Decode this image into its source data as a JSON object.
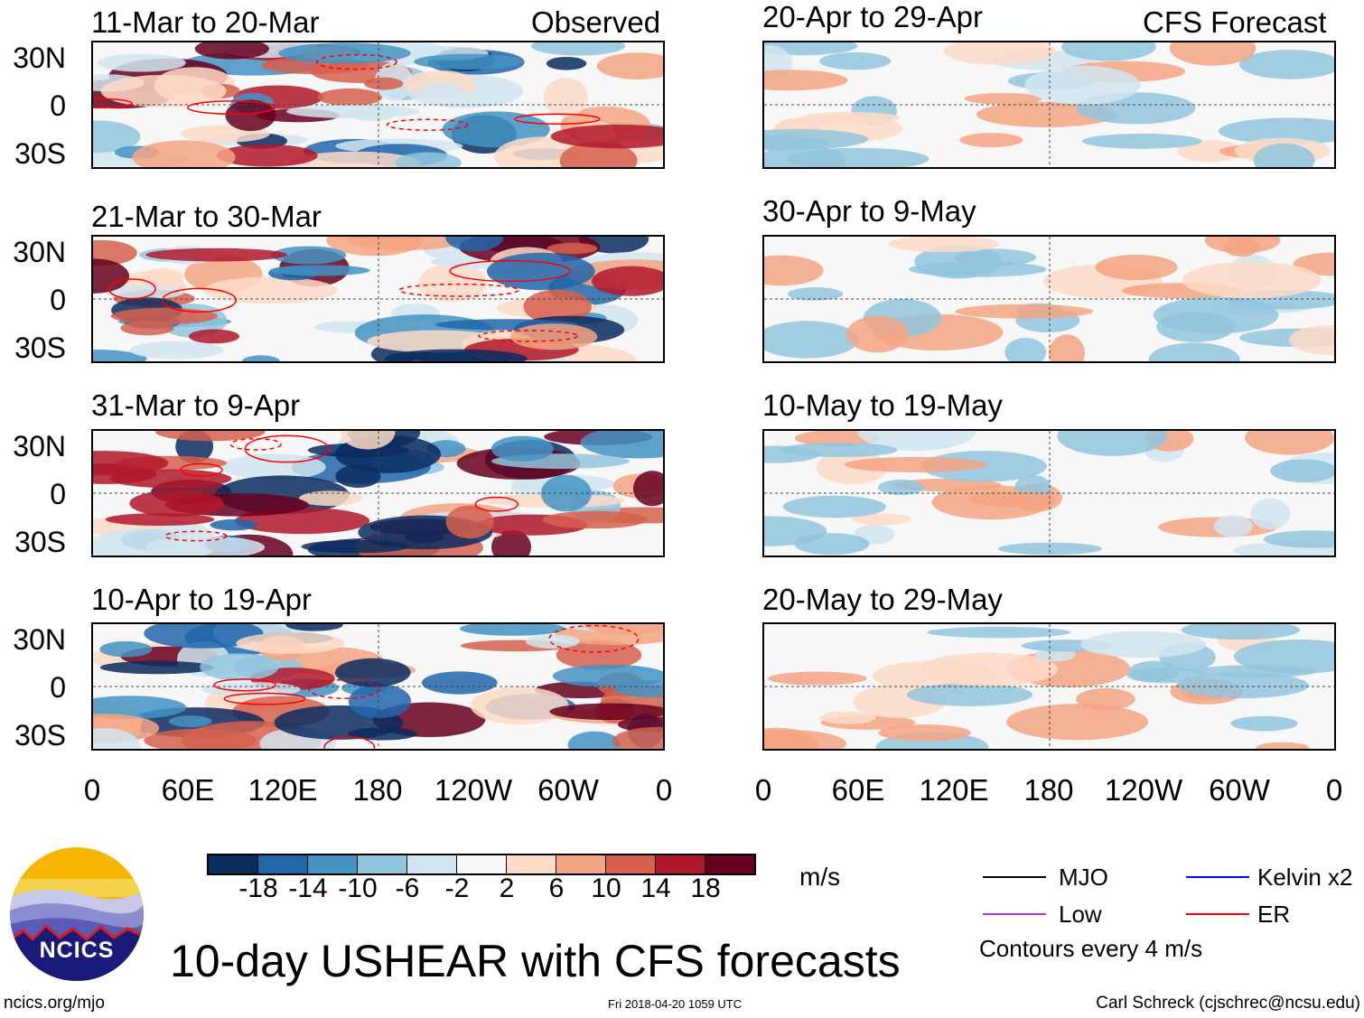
{
  "header": {
    "observed_label": "Observed",
    "forecast_label": "CFS Forecast"
  },
  "panels_left": [
    {
      "title": "11-Mar to 20-Mar"
    },
    {
      "title": "21-Mar to 30-Mar"
    },
    {
      "title": "31-Mar to 9-Apr"
    },
    {
      "title": "10-Apr to 19-Apr"
    }
  ],
  "panels_right": [
    {
      "title": "20-Apr to 29-Apr"
    },
    {
      "title": "30-Apr to 9-May"
    },
    {
      "title": "10-May to 19-May"
    },
    {
      "title": "20-May to 29-May"
    }
  ],
  "lat_labels": [
    "30N",
    "0",
    "30S"
  ],
  "lon_labels": [
    "0",
    "60E",
    "120E",
    "180",
    "120W",
    "60W",
    "0"
  ],
  "colorbar": {
    "colors": [
      "#0b2c5f",
      "#2166ac",
      "#4393c3",
      "#92c5de",
      "#d1e5f0",
      "#f7f7f7",
      "#fddbc7",
      "#f4a582",
      "#d6604d",
      "#b2182b",
      "#67001f"
    ],
    "labels": [
      "-18",
      "-14",
      "-10",
      "-6",
      "-2",
      "2",
      "6",
      "10",
      "14",
      "18"
    ],
    "units": "m/s"
  },
  "legend": {
    "items": [
      {
        "label": "MJO",
        "color": "#000000"
      },
      {
        "label": "Kelvin x2",
        "color": "#0000ff"
      },
      {
        "label": "Low",
        "color": "#a040e0"
      },
      {
        "label": "ER",
        "color": "#ff0000"
      }
    ],
    "contours_note": "Contours every 4 m/s"
  },
  "logo": {
    "text": "NCICS"
  },
  "title": "10-day USHEAR with CFS forecasts",
  "footer": {
    "url": "ncics.org/mjo",
    "timestamp": "Fri 2018-04-20 1059 UTC",
    "author": "Carl Schreck (cjschrec@ncsu.edu)"
  }
}
